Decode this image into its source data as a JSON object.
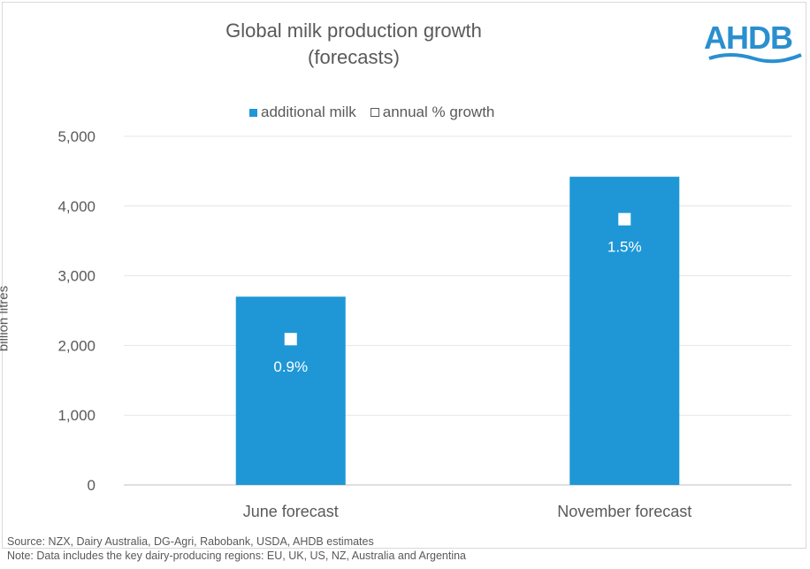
{
  "chart_data": {
    "type": "bar",
    "title": "Global milk production growth",
    "subtitle": "(forecasts)",
    "categories": [
      "June forecast",
      "November forecast"
    ],
    "series": [
      {
        "name": "additional milk",
        "values": [
          2700,
          4420
        ]
      },
      {
        "name": "annual % growth",
        "values": [
          0.9,
          1.5
        ],
        "labels": [
          "0.9%",
          "1.5%"
        ]
      }
    ],
    "ylabel": "billion litres",
    "xlabel": "",
    "ylim": [
      0,
      5000
    ],
    "yticks": [
      "0",
      "1,000",
      "2,000",
      "3,000",
      "4,000",
      "5,000"
    ],
    "ytick_values": [
      0,
      1000,
      2000,
      3000,
      4000,
      5000
    ],
    "grid": true,
    "legend_position": "top",
    "colors": {
      "bar": "#1f97d6",
      "marker": "#ffffff",
      "grid": "#e6e6e6",
      "text": "#595959"
    }
  },
  "logo": {
    "text": "AHDB",
    "color": "#2a8fd0"
  },
  "footer": {
    "source": "Source: NZX, Dairy Australia, DG-Agri, Rabobank, USDA, AHDB estimates",
    "note": "Note: Data includes the key dairy-producing regions: EU, UK, US, NZ, Australia and Argentina"
  }
}
